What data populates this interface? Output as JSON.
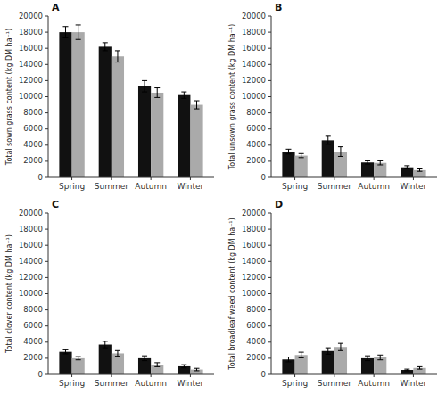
{
  "chart_data": [
    {
      "type": "bar",
      "title": "A",
      "ylabel": "Total sown grass content (kg DM ha⁻¹)",
      "categories": [
        "Spring",
        "Summer",
        "Autumn",
        "Winter"
      ],
      "series": [
        {
          "color": "#111111",
          "values": [
            18000,
            16200,
            11300,
            10200
          ],
          "errors": [
            700,
            500,
            700,
            400
          ]
        },
        {
          "color": "#aaaaaa",
          "values": [
            18000,
            15000,
            10500,
            9000
          ],
          "errors": [
            900,
            700,
            600,
            500
          ]
        }
      ],
      "ylim": [
        0,
        20000
      ],
      "yticks": [
        0,
        2000,
        4000,
        6000,
        8000,
        10000,
        12000,
        14000,
        16000,
        18000,
        20000
      ],
      "grid": false
    },
    {
      "type": "bar",
      "title": "B",
      "ylabel": "Total unsown grass content (kg DM ha⁻¹)",
      "categories": [
        "Spring",
        "Summer",
        "Autumn",
        "Winter"
      ],
      "series": [
        {
          "color": "#111111",
          "values": [
            3200,
            4600,
            1850,
            1250
          ],
          "errors": [
            300,
            500,
            200,
            200
          ]
        },
        {
          "color": "#aaaaaa",
          "values": [
            2700,
            3200,
            1800,
            900
          ],
          "errors": [
            250,
            600,
            250,
            150
          ]
        }
      ],
      "ylim": [
        0,
        20000
      ],
      "yticks": [
        0,
        2000,
        4000,
        6000,
        8000,
        10000,
        12000,
        14000,
        16000,
        18000,
        20000
      ],
      "grid": false
    },
    {
      "type": "bar",
      "title": "C",
      "ylabel": "Total clover content (kg DM ha⁻¹)",
      "categories": [
        "Spring",
        "Summer",
        "Autumn",
        "Winter"
      ],
      "series": [
        {
          "color": "#111111",
          "values": [
            2800,
            3700,
            2000,
            1000
          ],
          "errors": [
            250,
            400,
            300,
            200
          ]
        },
        {
          "color": "#aaaaaa",
          "values": [
            2000,
            2600,
            1200,
            600
          ],
          "errors": [
            200,
            350,
            250,
            150
          ]
        }
      ],
      "ylim": [
        0,
        20000
      ],
      "yticks": [
        0,
        2000,
        4000,
        6000,
        8000,
        10000,
        12000,
        14000,
        16000,
        18000,
        20000
      ],
      "grid": false
    },
    {
      "type": "bar",
      "title": "D",
      "ylabel": "Total broadleaf weed content (kg DM ha⁻¹)",
      "categories": [
        "Spring",
        "Summer",
        "Autumn",
        "Winter"
      ],
      "series": [
        {
          "color": "#111111",
          "values": [
            1850,
            2900,
            2000,
            550
          ],
          "errors": [
            300,
            400,
            300,
            100
          ]
        },
        {
          "color": "#aaaaaa",
          "values": [
            2400,
            3400,
            2100,
            800
          ],
          "errors": [
            350,
            450,
            300,
            150
          ]
        }
      ],
      "ylim": [
        0,
        20000
      ],
      "yticks": [
        0,
        2000,
        4000,
        6000,
        8000,
        10000,
        12000,
        14000,
        16000,
        18000,
        20000
      ],
      "grid": false
    }
  ]
}
